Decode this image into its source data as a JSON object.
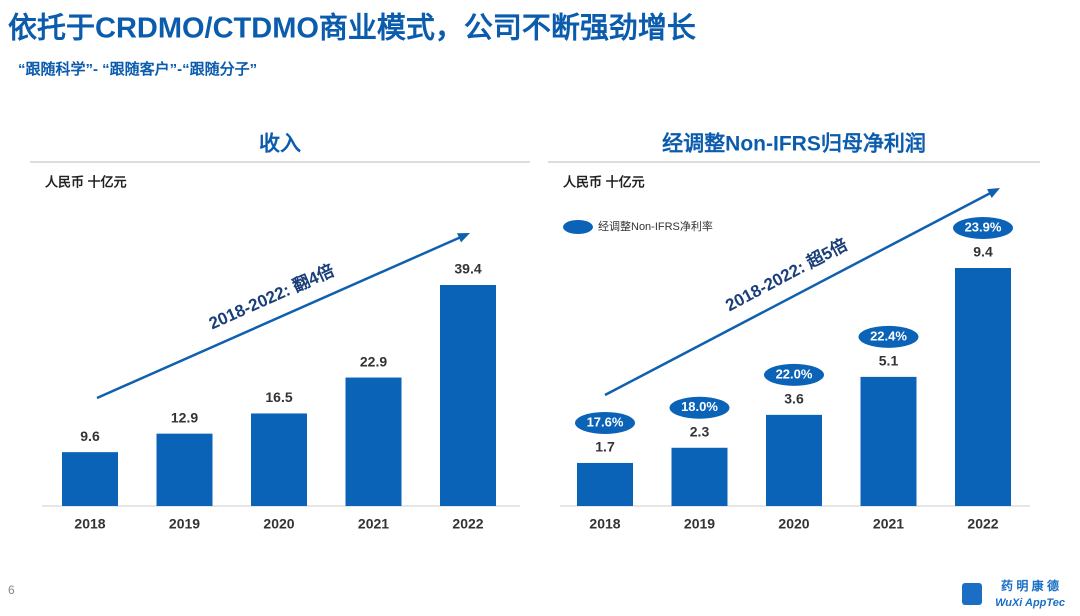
{
  "title": "依托于CRDMO/CTDMO商业模式，公司不断强劲增长",
  "subtitle": "“跟随科学”-  “跟随客户”-“跟随分子”",
  "page_number": 6,
  "logo": {
    "cn": "药 明 康 德",
    "en": "WuXi AppTec"
  },
  "chart_data": [
    {
      "type": "bar",
      "title": "收入",
      "unit": "人民币 十亿元",
      "categories": [
        "2018",
        "2019",
        "2020",
        "2021",
        "2022"
      ],
      "values": [
        9.6,
        12.9,
        16.5,
        22.9,
        39.4
      ],
      "color": "#0b63b8",
      "annotation": "2018-2022: 翻4倍"
    },
    {
      "type": "bar",
      "title": "经调整Non-IFRS归母净利润",
      "unit": "人民币 十亿元",
      "categories": [
        "2018",
        "2019",
        "2020",
        "2021",
        "2022"
      ],
      "values": [
        1.7,
        2.3,
        3.6,
        5.1,
        9.4
      ],
      "color": "#0b63b8",
      "annotation": "2018-2022: 超5倍",
      "margin": {
        "name": "经调整Non-IFRS净利率",
        "color": "#0b63b8",
        "values": [
          17.6,
          18.0,
          22.0,
          22.4,
          23.9
        ],
        "value_labels": [
          "17.6%",
          "18.0%",
          "22.0%",
          "22.4%",
          "23.9%"
        ]
      }
    }
  ]
}
